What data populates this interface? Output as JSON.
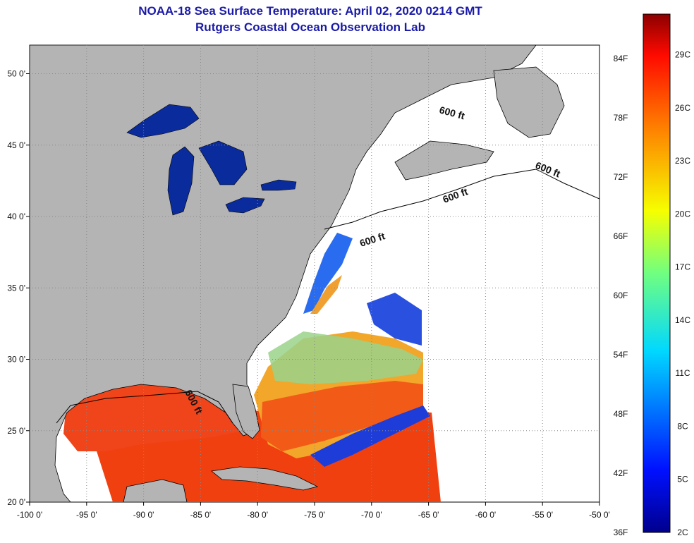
{
  "title": "NOAA-18 Sea Surface Temperature:  April 02, 2020 0214 GMT",
  "subtitle": "Rutgers Coastal Ocean Observation Lab",
  "map": {
    "lon_range": [
      -100,
      -50
    ],
    "lat_range": [
      20,
      52
    ],
    "lon_ticks": [
      "-100 0'",
      "-95 0'",
      "-90 0'",
      "-85 0'",
      "-80 0'",
      "-75 0'",
      "-70 0'",
      "-65 0'",
      "-60 0'",
      "-55 0'",
      "-50 0'"
    ],
    "lat_ticks": [
      "20 0'",
      "25 0'",
      "30 0'",
      "35 0'",
      "40 0'",
      "45 0'",
      "50 0'"
    ],
    "grid": "dotted",
    "contour_labels": [
      "600 ft",
      "600 ft",
      "600 ft",
      "600 ft",
      "600 ft"
    ],
    "colors": {
      "land": "#b4b4b4",
      "no_data": "#ffffff",
      "great_lakes": "#0a2b9c"
    }
  },
  "colorbar": {
    "fahrenheit_labels": [
      "84F",
      "78F",
      "72F",
      "66F",
      "60F",
      "54F",
      "48F",
      "42F",
      "36F"
    ],
    "celsius_labels": [
      "29C",
      "26C",
      "23C",
      "20C",
      "17C",
      "14C",
      "11C",
      "8C",
      "5C",
      "2C"
    ],
    "colormap": "jet",
    "min_color": "#00008c",
    "max_color": "#8c0000"
  }
}
